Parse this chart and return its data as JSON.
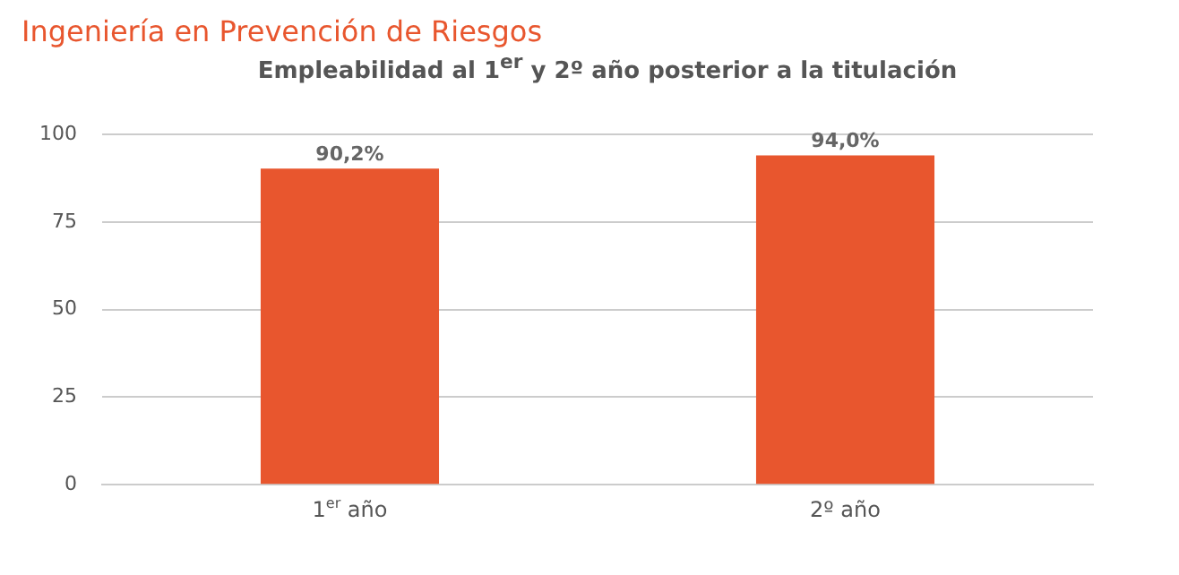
{
  "chart_data": {
    "type": "bar",
    "title": "Ingeniería en Prevención de Riesgos",
    "subtitle": "Empleabilidad al 1$^{er}$ y 2º año posterior a la titulación",
    "categories": [
      "1$^{er}$ año",
      "2º año"
    ],
    "values": [
      90.2,
      94.0
    ],
    "color": "#e8562e",
    "value_labels": [
      "90,2%",
      "94,0%"
    ],
    "ylim": [
      0,
      100
    ],
    "yticks": [
      0,
      25,
      50,
      75,
      100
    ],
    "grid": "y"
  }
}
